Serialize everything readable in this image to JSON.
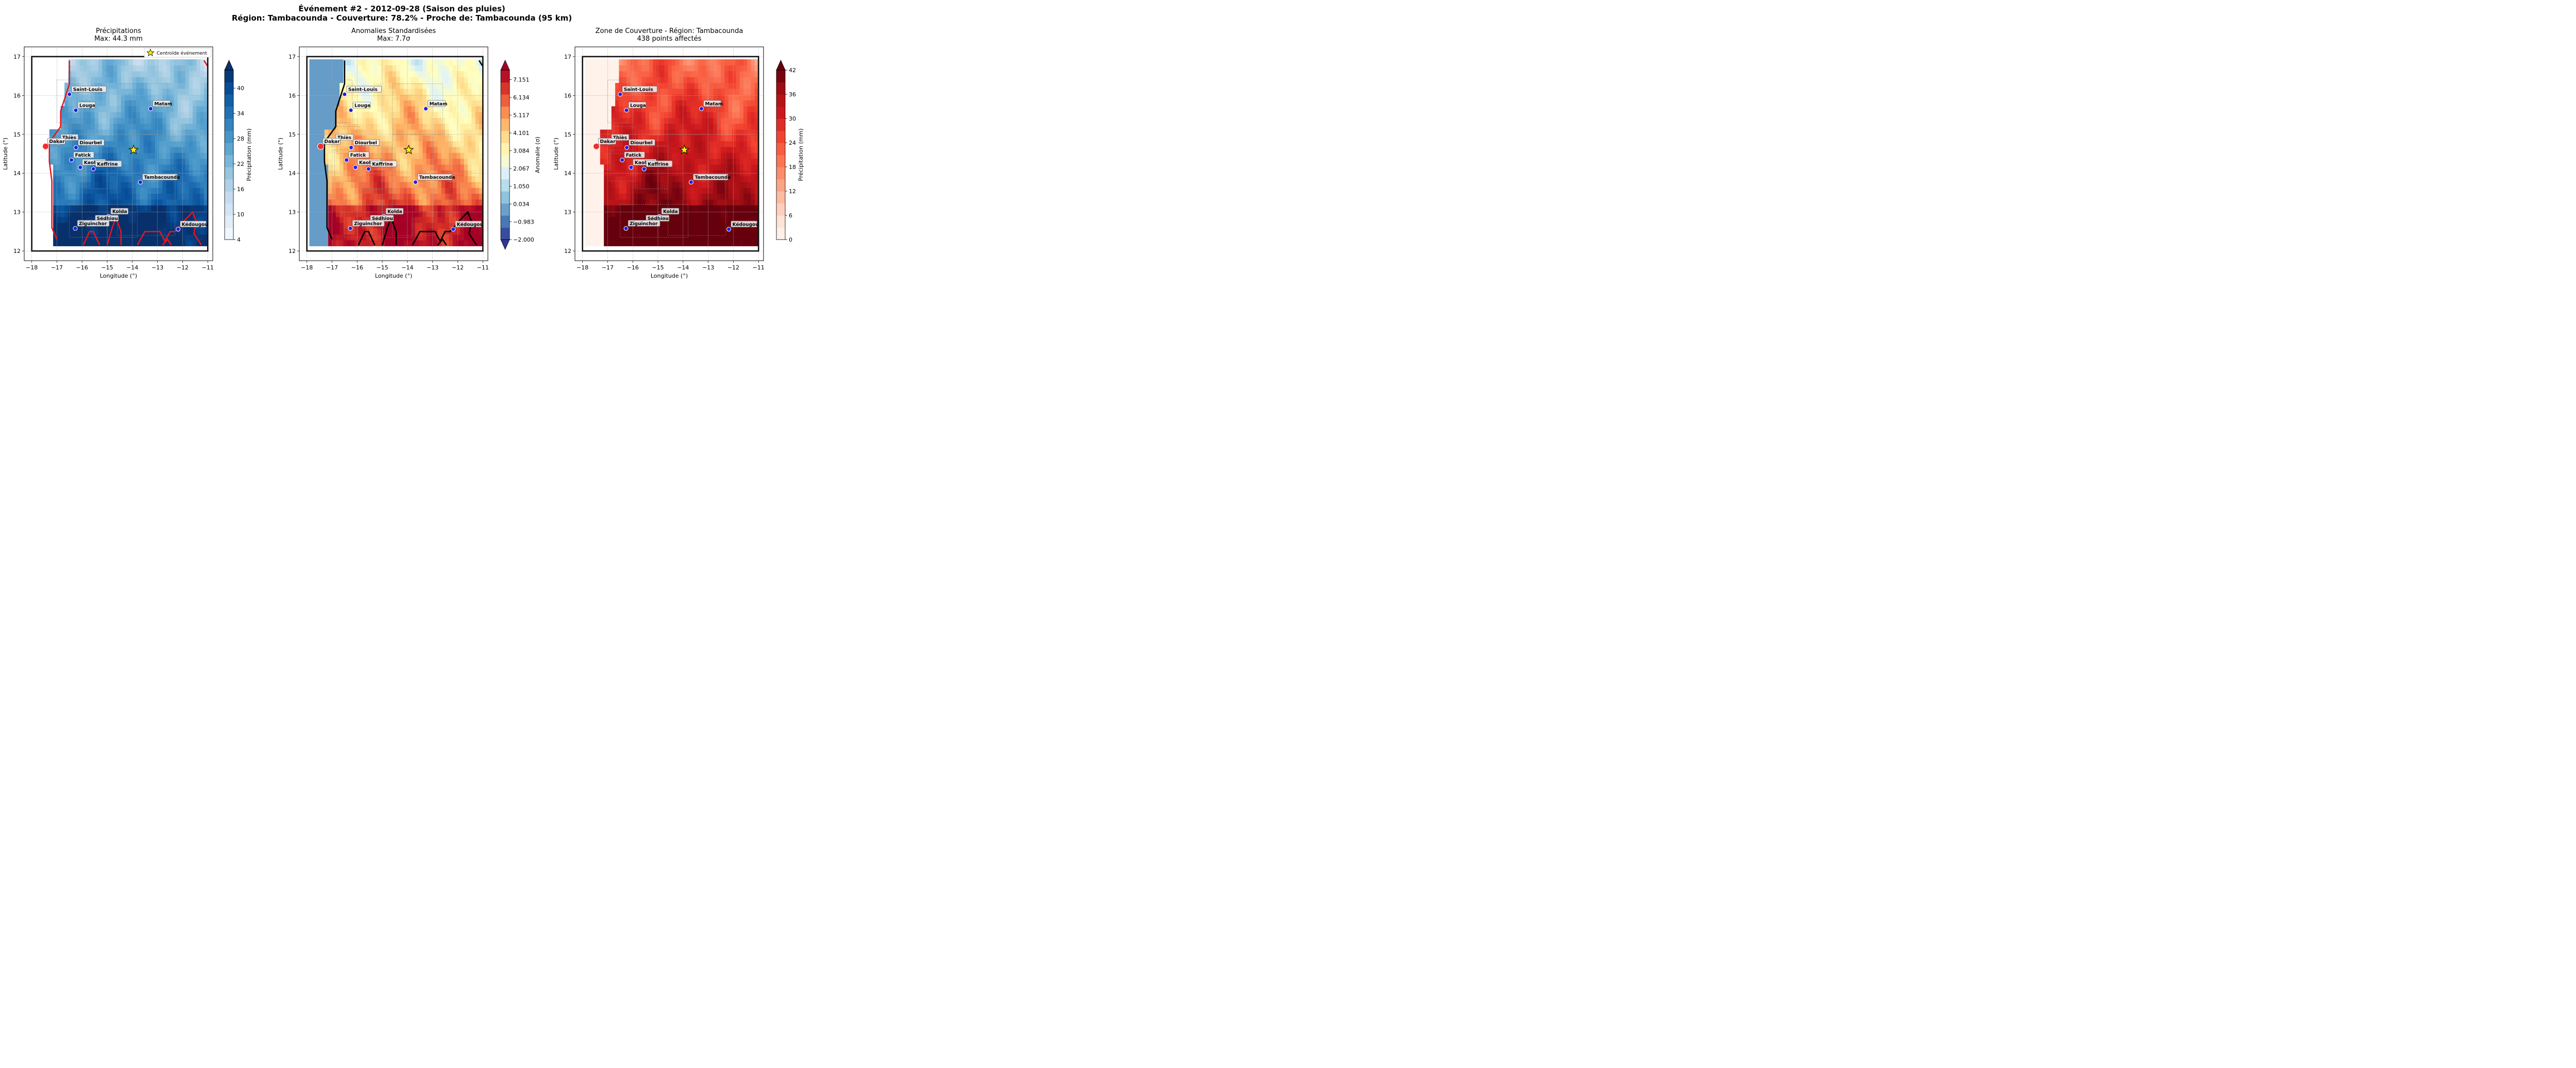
{
  "suptitle": {
    "line1": "Événement #2 - 2012-09-28 (Saison des pluies)",
    "line2": "Région: Tambacounda - Couverture: 78.2% - Proche de: Tambacounda (95 km)"
  },
  "colors": {
    "blues": [
      "#f7fbff",
      "#deebf7",
      "#c6dbef",
      "#9ecae1",
      "#6baed6",
      "#4292c6",
      "#2171b5",
      "#08519c",
      "#08306b"
    ],
    "rdylbu": [
      "#313695",
      "#4575b4",
      "#74add1",
      "#abd9e9",
      "#e0f3f8",
      "#ffffbf",
      "#fee090",
      "#fdae61",
      "#f46d43",
      "#d73027",
      "#a50026"
    ],
    "reds": [
      "#fff5f0",
      "#fee0d2",
      "#fcbba1",
      "#fc9272",
      "#fb6a4a",
      "#ef3b2c",
      "#cb181d",
      "#a50f15",
      "#67000d"
    ],
    "contour_red": "#e8141c",
    "contour_black": "#000000",
    "city_marker": "#1f1fe0",
    "capital_marker": "#f03030",
    "star": "#ffee00"
  },
  "chart_data": [
    {
      "type": "heatmap",
      "title": "Précipitations",
      "subtitle": "Max: 44.3 mm",
      "xlabel": "Longitude (°)",
      "ylabel": "Latitude (°)",
      "xlim": [
        -18.3,
        -10.8
      ],
      "ylim": [
        11.75,
        17.25
      ],
      "xticks": [
        "−18",
        "−17",
        "−16",
        "−15",
        "−14",
        "−13",
        "−12",
        "−11"
      ],
      "yticks": [
        "12",
        "13",
        "14",
        "15",
        "16",
        "17"
      ],
      "colorbar_label": "Précipitation (mm)",
      "colorbar_ticks": [
        "4",
        "10",
        "16",
        "22",
        "28",
        "34",
        "40"
      ],
      "colorbar_range": [
        4,
        44.3
      ],
      "colormap": "blues",
      "legend": {
        "label": "Centroïde événement",
        "position": "upper right"
      },
      "centroid": {
        "lon": -13.95,
        "lat": 14.6
      },
      "contour_color": "red",
      "grid": true
    },
    {
      "type": "heatmap",
      "title": "Anomalies Standardisées",
      "subtitle": "Max: 7.7σ",
      "xlabel": "Longitude (°)",
      "ylabel": "Latitude (°)",
      "xlim": [
        -18.3,
        -10.8
      ],
      "ylim": [
        11.75,
        17.25
      ],
      "xticks": [
        "−18",
        "−17",
        "−16",
        "−15",
        "−14",
        "−13",
        "−12",
        "−11"
      ],
      "yticks": [
        "12",
        "13",
        "14",
        "15",
        "16",
        "17"
      ],
      "colorbar_label": "Anomalie (σ)",
      "colorbar_ticks": [
        "−2.000",
        "−0.983",
        "0.034",
        "1.050",
        "2.067",
        "3.084",
        "4.101",
        "5.117",
        "6.134",
        "7.151"
      ],
      "colorbar_range": [
        -2.0,
        7.7
      ],
      "colormap": "rdylbu",
      "centroid": {
        "lon": -13.95,
        "lat": 14.6
      },
      "contour_color": "black",
      "grid": true
    },
    {
      "type": "heatmap",
      "title": "Zone de Couverture - Région: Tambacounda",
      "subtitle": "438 points affectés",
      "xlabel": "Longitude (°)",
      "ylabel": "Latitude (°)",
      "xlim": [
        -18.3,
        -10.8
      ],
      "ylim": [
        11.75,
        17.25
      ],
      "xticks": [
        "−18",
        "−17",
        "−16",
        "−15",
        "−14",
        "−13",
        "−12",
        "−11"
      ],
      "yticks": [
        "12",
        "13",
        "14",
        "15",
        "16",
        "17"
      ],
      "colorbar_label": "Précipitation (mm)",
      "colorbar_ticks": [
        "0",
        "6",
        "12",
        "18",
        "24",
        "30",
        "36",
        "42"
      ],
      "colorbar_range": [
        0,
        42
      ],
      "colormap": "reds",
      "centroid": {
        "lon": -13.95,
        "lat": 14.6
      },
      "contour_color": "none",
      "grid": true
    }
  ],
  "cities": [
    {
      "name": "Saint-Louis",
      "lon": -16.5,
      "lat": 16.03,
      "capital": false
    },
    {
      "name": "Louga",
      "lon": -16.25,
      "lat": 15.62,
      "capital": false
    },
    {
      "name": "Matam",
      "lon": -13.27,
      "lat": 15.66,
      "capital": false
    },
    {
      "name": "Thiès",
      "lon": -16.93,
      "lat": 14.79,
      "capital": false
    },
    {
      "name": "Dakar",
      "lon": -17.45,
      "lat": 14.69,
      "capital": true
    },
    {
      "name": "Diourbel",
      "lon": -16.24,
      "lat": 14.66,
      "capital": false
    },
    {
      "name": "Fatick",
      "lon": -16.42,
      "lat": 14.34,
      "capital": false
    },
    {
      "name": "Kaolack",
      "lon": -16.07,
      "lat": 14.15,
      "capital": false
    },
    {
      "name": "Kaffrine",
      "lon": -15.55,
      "lat": 14.11,
      "capital": false
    },
    {
      "name": "Tambacounda",
      "lon": -13.68,
      "lat": 13.77,
      "capital": false
    },
    {
      "name": "Kolda",
      "lon": -14.94,
      "lat": 12.89,
      "capital": false
    },
    {
      "name": "Sédhiou",
      "lon": -15.56,
      "lat": 12.71,
      "capital": false
    },
    {
      "name": "Ziguinchor",
      "lon": -16.27,
      "lat": 12.58,
      "capital": false
    },
    {
      "name": "Kédougou",
      "lon": -12.18,
      "lat": 12.56,
      "capital": false
    }
  ]
}
